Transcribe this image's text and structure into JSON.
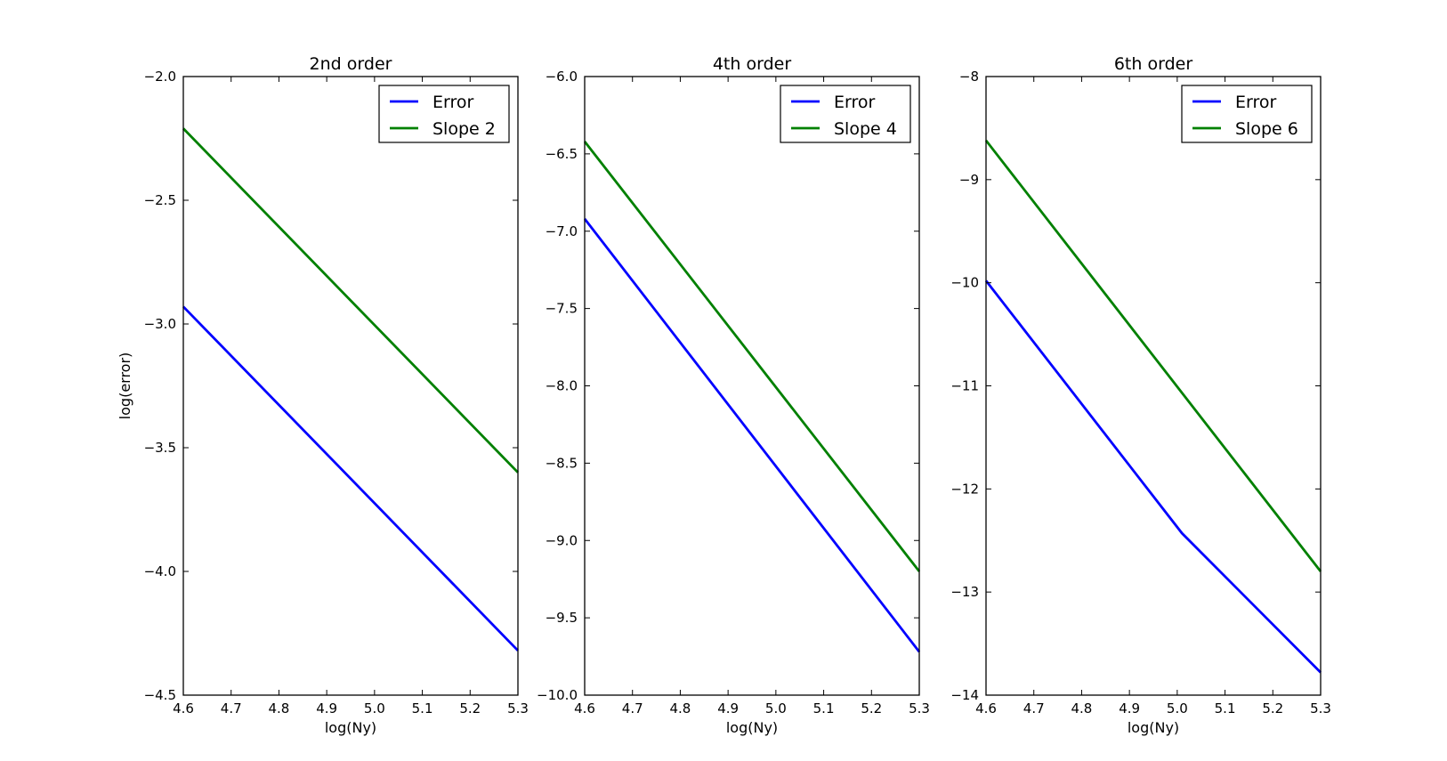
{
  "chart_data": [
    {
      "type": "line",
      "title": "2nd order",
      "xlabel": "log(Ny)",
      "ylabel": "log(error)",
      "xlim": [
        4.6,
        5.3
      ],
      "ylim": [
        -4.5,
        -2.0
      ],
      "xticks": [
        4.6,
        4.7,
        4.8,
        4.9,
        5.0,
        5.1,
        5.2,
        5.3
      ],
      "xtick_labels": [
        "4.6",
        "4.7",
        "4.8",
        "4.9",
        "5.0",
        "5.1",
        "5.2",
        "5.3"
      ],
      "yticks": [
        -4.5,
        -4.0,
        -3.5,
        -3.0,
        -2.5,
        -2.0
      ],
      "ytick_labels": [
        "−4.5",
        "−4.0",
        "−3.5",
        "−3.0",
        "−2.5",
        "−2.0"
      ],
      "grid": false,
      "legend_position": "top-right",
      "series": [
        {
          "name": "Error",
          "color": "#0000ff",
          "x": [
            4.6,
            5.3
          ],
          "y": [
            -2.93,
            -4.32
          ]
        },
        {
          "name": "Slope 2",
          "color": "#008000",
          "x": [
            4.6,
            5.3
          ],
          "y": [
            -2.21,
            -3.6
          ]
        }
      ]
    },
    {
      "type": "line",
      "title": "4th order",
      "xlabel": "log(Ny)",
      "ylabel": "",
      "xlim": [
        4.6,
        5.3
      ],
      "ylim": [
        -10.0,
        -6.0
      ],
      "xticks": [
        4.6,
        4.7,
        4.8,
        4.9,
        5.0,
        5.1,
        5.2,
        5.3
      ],
      "xtick_labels": [
        "4.6",
        "4.7",
        "4.8",
        "4.9",
        "5.0",
        "5.1",
        "5.2",
        "5.3"
      ],
      "yticks": [
        -10.0,
        -9.5,
        -9.0,
        -8.5,
        -8.0,
        -7.5,
        -7.0,
        -6.5,
        -6.0
      ],
      "ytick_labels": [
        "−10.0",
        "−9.5",
        "−9.0",
        "−8.5",
        "−8.0",
        "−7.5",
        "−7.0",
        "−6.5",
        "−6.0"
      ],
      "grid": false,
      "legend_position": "top-right",
      "series": [
        {
          "name": "Error",
          "color": "#0000ff",
          "x": [
            4.6,
            5.3
          ],
          "y": [
            -6.92,
            -9.72
          ]
        },
        {
          "name": "Slope 4",
          "color": "#008000",
          "x": [
            4.6,
            5.3
          ],
          "y": [
            -6.42,
            -9.2
          ]
        }
      ]
    },
    {
      "type": "line",
      "title": "6th order",
      "xlabel": "log(Ny)",
      "ylabel": "",
      "xlim": [
        4.6,
        5.3
      ],
      "ylim": [
        -14,
        -8
      ],
      "xticks": [
        4.6,
        4.7,
        4.8,
        4.9,
        5.0,
        5.1,
        5.2,
        5.3
      ],
      "xtick_labels": [
        "4.6",
        "4.7",
        "4.8",
        "4.9",
        "5.0",
        "5.1",
        "5.2",
        "5.3"
      ],
      "yticks": [
        -14,
        -13,
        -12,
        -11,
        -10,
        -9,
        -8
      ],
      "ytick_labels": [
        "−14",
        "−13",
        "−12",
        "−11",
        "−10",
        "−9",
        "−8"
      ],
      "grid": false,
      "legend_position": "top-right",
      "series": [
        {
          "name": "Error",
          "color": "#0000ff",
          "x": [
            4.6,
            5.01,
            5.3
          ],
          "y": [
            -9.98,
            -12.43,
            -13.78
          ]
        },
        {
          "name": "Slope 6",
          "color": "#008000",
          "x": [
            4.6,
            5.3
          ],
          "y": [
            -8.62,
            -12.8
          ]
        }
      ]
    }
  ]
}
